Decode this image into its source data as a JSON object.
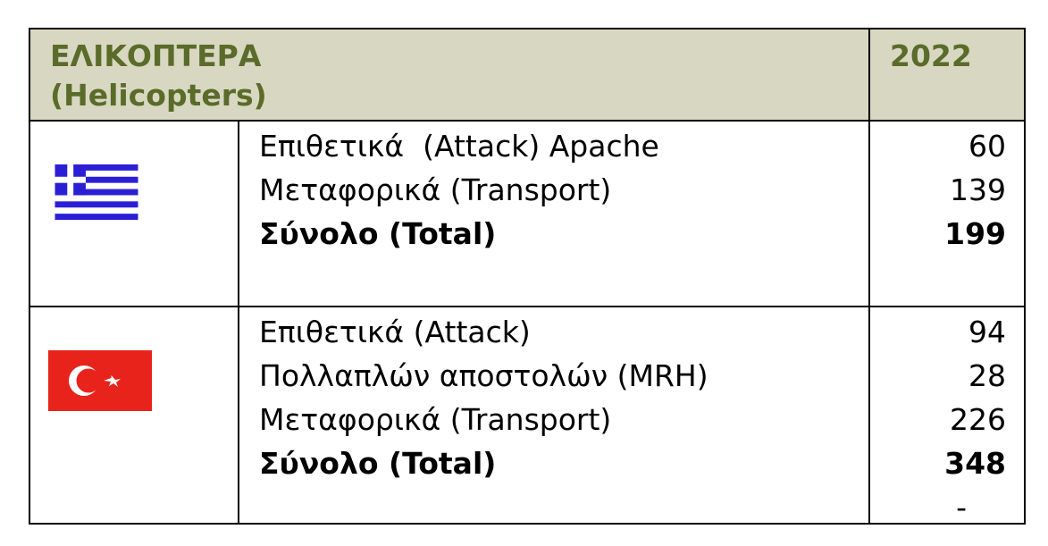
{
  "header": {
    "title_line1": "ΕΛΙΚΟΠΤΕΡΑ",
    "title_line2": "(Helicopters)",
    "year": "2022"
  },
  "colors": {
    "header_bg": "#d8d8c2",
    "header_text": "#5a6b2a"
  },
  "greece": {
    "flag": "greece-flag-icon",
    "rows": [
      {
        "label": "Επιθετικά  (Attack) Apache",
        "value": "60"
      },
      {
        "label": "Μεταφορικά (Transport)",
        "value": "139"
      },
      {
        "label": "Σύνολο (Total)",
        "value": "199"
      }
    ]
  },
  "turkey": {
    "flag": "turkey-flag-icon",
    "rows": [
      {
        "label": "Επιθετικά (Attack)",
        "value": "94"
      },
      {
        "label": "Πολλαπλών αποστολών (MRH)",
        "value": "28"
      },
      {
        "label": "Μεταφορικά (Transport)",
        "value": "226"
      },
      {
        "label": "Σύνολο (Total)",
        "value": "348"
      }
    ],
    "extra": "-"
  }
}
